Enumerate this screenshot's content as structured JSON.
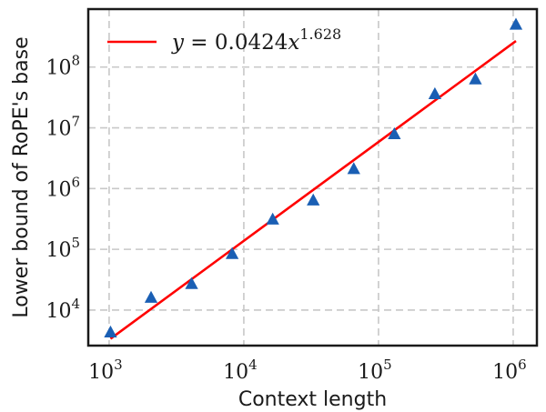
{
  "chart_data": {
    "type": "scatter",
    "xscale": "log",
    "yscale": "log",
    "xlim": [
      700,
      1500000
    ],
    "ylim": [
      2600,
      900000000
    ],
    "xlabel": "Context length",
    "ylabel": "Lower bound of RoPE's base",
    "grid": true,
    "legend_position": "top-left",
    "x_ticks": [
      1000,
      10000,
      100000,
      1000000
    ],
    "x_tick_labels": [
      {
        "base": "10",
        "exp": "3"
      },
      {
        "base": "10",
        "exp": "4"
      },
      {
        "base": "10",
        "exp": "5"
      },
      {
        "base": "10",
        "exp": "6"
      }
    ],
    "y_ticks": [
      10000,
      100000,
      1000000,
      10000000,
      100000000
    ],
    "y_tick_labels": [
      {
        "base": "10",
        "exp": "4"
      },
      {
        "base": "10",
        "exp": "5"
      },
      {
        "base": "10",
        "exp": "6"
      },
      {
        "base": "10",
        "exp": "7"
      },
      {
        "base": "10",
        "exp": "8"
      }
    ],
    "series": [
      {
        "type": "scatter",
        "marker": "triangle",
        "color": "#1a5fb4",
        "points": [
          {
            "x": 1024,
            "y": 4300
          },
          {
            "x": 2048,
            "y": 16000
          },
          {
            "x": 4096,
            "y": 27000
          },
          {
            "x": 8192,
            "y": 84000
          },
          {
            "x": 16384,
            "y": 310000
          },
          {
            "x": 32768,
            "y": 640000
          },
          {
            "x": 65536,
            "y": 2100000
          },
          {
            "x": 131072,
            "y": 7900000
          },
          {
            "x": 262144,
            "y": 36000000
          },
          {
            "x": 524288,
            "y": 63000000
          },
          {
            "x": 1048576,
            "y": 500000000
          }
        ]
      },
      {
        "type": "line",
        "name_parts": {
          "lhs": "y",
          "eq": " = ",
          "coef": "0.0424",
          "var": "x",
          "exp": "1.628"
        },
        "color": "#ff0000",
        "coef": 0.0424,
        "exponent": 1.628,
        "x_range": [
          1024,
          1048576
        ]
      }
    ]
  }
}
